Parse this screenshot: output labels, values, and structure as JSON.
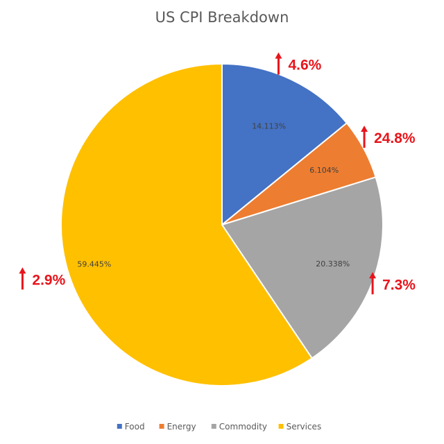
{
  "chart_data": {
    "type": "pie",
    "title": "US CPI Breakdown",
    "categories": [
      "Food",
      "Energy",
      "Commodity",
      "Services"
    ],
    "values": [
      14.113,
      6.104,
      20.338,
      59.445
    ],
    "labels": [
      "14.113%",
      "6.104%",
      "20.338%",
      "59.445%"
    ],
    "colors": [
      "#4472c4",
      "#ed7d31",
      "#a5a5a5",
      "#ffc000"
    ],
    "annotations": [
      {
        "category": "Food",
        "text": "4.6%",
        "direction": "up"
      },
      {
        "category": "Energy",
        "text": "24.8%",
        "direction": "up"
      },
      {
        "category": "Commodity",
        "text": "7.3%",
        "direction": "up"
      },
      {
        "category": "Services",
        "text": "2.9%",
        "direction": "up"
      }
    ],
    "annotation_color": "#e8141b",
    "legend": {
      "position": "bottom",
      "entries": [
        "Food",
        "Energy",
        "Commodity",
        "Services"
      ]
    }
  }
}
